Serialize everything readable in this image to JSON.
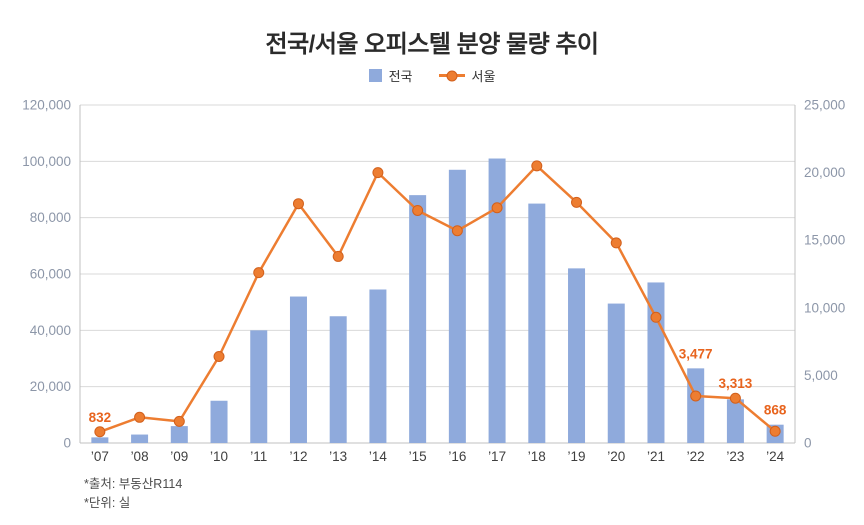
{
  "chart_data": {
    "type": "bar",
    "subtype": "bar-line-combo",
    "title": "전국/서울 오피스텔 분양 물량 추이",
    "categories": [
      "’07",
      "’08",
      "’09",
      "’10",
      "’11",
      "’12",
      "’13",
      "’14",
      "’15",
      "’16",
      "’17",
      "’18",
      "’19",
      "’20",
      "’21",
      "’22",
      "’23",
      "’24"
    ],
    "series": [
      {
        "name": "전국",
        "type": "bar",
        "axis": "left",
        "values": [
          2000,
          3000,
          6000,
          15000,
          40000,
          52000,
          45000,
          54500,
          88000,
          97000,
          101000,
          85000,
          62000,
          49500,
          57000,
          26500,
          15500,
          6500
        ]
      },
      {
        "name": "서울",
        "type": "line",
        "axis": "right",
        "values": [
          832,
          1900,
          1600,
          6400,
          12600,
          17700,
          13800,
          20000,
          17200,
          15700,
          17400,
          20500,
          17800,
          14800,
          9300,
          3477,
          3313,
          868
        ],
        "point_labels": [
          "832",
          null,
          null,
          null,
          null,
          null,
          null,
          null,
          null,
          null,
          null,
          null,
          null,
          null,
          null,
          "3,477",
          "3,313",
          "868"
        ]
      }
    ],
    "left_axis": {
      "min": 0,
      "max": 120000,
      "step": 20000
    },
    "right_axis": {
      "min": 0,
      "max": 25000,
      "step": 5000
    },
    "grid": true,
    "legend_position": "top"
  },
  "colors": {
    "bar": "#8FAADC",
    "line": "#ED7D31",
    "marker_stroke": "#D2601C",
    "data_label": "#E8641E",
    "axis_text": "#8C96A8",
    "x_label": "#3F3F3F",
    "grid": "#D9D9D9",
    "axis_line": "#C0C0C0"
  },
  "footnotes": {
    "source": "*출처: 부동산R114",
    "unit": "*단위: 실"
  }
}
